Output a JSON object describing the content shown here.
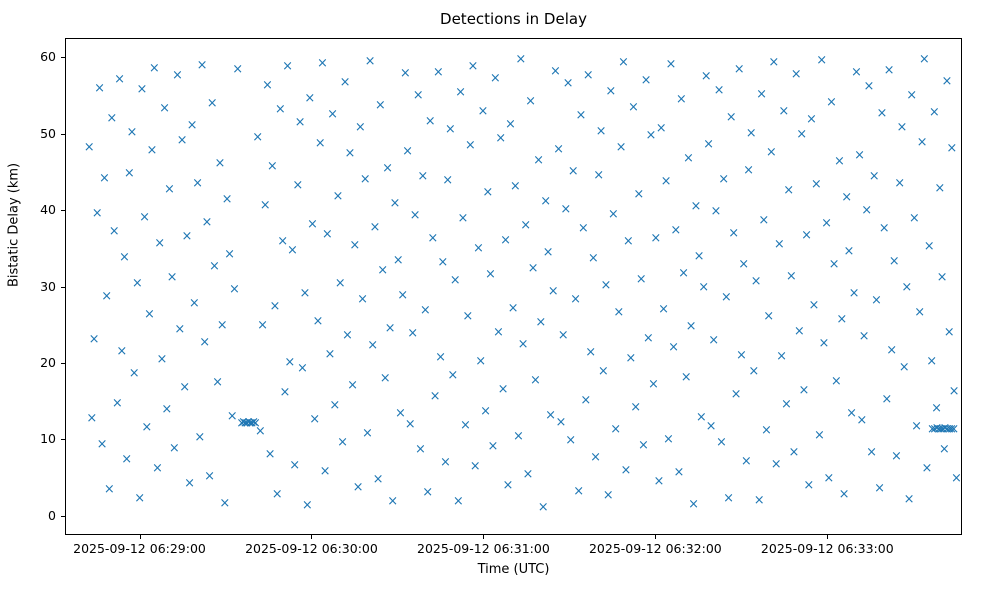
{
  "chart_data": {
    "type": "scatter",
    "title": "Detections in Delay",
    "xlabel": "Time (UTC)",
    "ylabel": "Bistatic Delay (km)",
    "marker": "x",
    "marker_glyph": "×",
    "marker_color": "#1f77b4",
    "grid": false,
    "legend": "none",
    "x_unit": "seconds after 2025-09-12 06:28:00 UTC",
    "xlim": [
      34,
      347
    ],
    "ylim": [
      -2.5,
      62.5
    ],
    "x_ticks": [
      {
        "t": 60,
        "label": "2025-09-12 06:29:00"
      },
      {
        "t": 120,
        "label": "2025-09-12 06:30:00"
      },
      {
        "t": 180,
        "label": "2025-09-12 06:31:00"
      },
      {
        "t": 240,
        "label": "2025-09-12 06:32:00"
      },
      {
        "t": 300,
        "label": "2025-09-12 06:33:00"
      }
    ],
    "y_ticks": [
      0,
      10,
      20,
      30,
      40,
      50,
      60
    ],
    "points": [
      [
        42.1,
        48.3
      ],
      [
        43.0,
        12.8
      ],
      [
        43.8,
        23.1
      ],
      [
        44.9,
        39.6
      ],
      [
        45.7,
        55.9
      ],
      [
        46.6,
        9.4
      ],
      [
        47.4,
        44.2
      ],
      [
        48.2,
        28.7
      ],
      [
        49.1,
        3.5
      ],
      [
        50.0,
        52.0
      ],
      [
        50.8,
        37.3
      ],
      [
        51.9,
        14.8
      ],
      [
        52.7,
        57.1
      ],
      [
        53.5,
        21.6
      ],
      [
        54.4,
        33.9
      ],
      [
        55.2,
        7.4
      ],
      [
        56.1,
        44.9
      ],
      [
        57.0,
        50.2
      ],
      [
        57.8,
        18.7
      ],
      [
        58.9,
        30.5
      ],
      [
        59.7,
        2.3
      ],
      [
        60.5,
        55.8
      ],
      [
        61.4,
        39.1
      ],
      [
        62.2,
        11.6
      ],
      [
        63.1,
        26.4
      ],
      [
        64.0,
        47.9
      ],
      [
        64.8,
        58.6
      ],
      [
        65.9,
        6.2
      ],
      [
        66.7,
        35.7
      ],
      [
        67.5,
        20.5
      ],
      [
        68.4,
        53.3
      ],
      [
        69.2,
        14.0
      ],
      [
        70.1,
        42.8
      ],
      [
        71.0,
        31.2
      ],
      [
        71.8,
        8.9
      ],
      [
        72.9,
        57.6
      ],
      [
        73.7,
        24.4
      ],
      [
        74.5,
        49.1
      ],
      [
        75.4,
        16.9
      ],
      [
        76.2,
        36.6
      ],
      [
        77.1,
        4.3
      ],
      [
        78.0,
        51.1
      ],
      [
        78.8,
        27.8
      ],
      [
        79.9,
        43.6
      ],
      [
        80.7,
        10.3
      ],
      [
        81.5,
        59.0
      ],
      [
        82.4,
        22.8
      ],
      [
        83.2,
        38.5
      ],
      [
        84.1,
        5.2
      ],
      [
        85.0,
        54.0
      ],
      [
        85.8,
        32.7
      ],
      [
        86.9,
        17.5
      ],
      [
        87.7,
        46.2
      ],
      [
        88.5,
        25.0
      ],
      [
        89.4,
        1.7
      ],
      [
        90.2,
        41.5
      ],
      [
        91.1,
        34.2
      ],
      [
        92.0,
        13.0
      ],
      [
        92.8,
        29.7
      ],
      [
        93.9,
        58.4
      ],
      [
        95.3,
        12.2
      ],
      [
        95.9,
        12.3
      ],
      [
        96.5,
        12.1
      ],
      [
        97.1,
        12.2
      ],
      [
        97.7,
        12.3
      ],
      [
        98.3,
        12.1
      ],
      [
        98.9,
        12.2
      ],
      [
        99.5,
        12.3
      ],
      [
        100.1,
        12.2
      ],
      [
        100.9,
        49.6
      ],
      [
        101.8,
        11.1
      ],
      [
        102.6,
        24.9
      ],
      [
        103.5,
        40.7
      ],
      [
        104.3,
        56.4
      ],
      [
        105.2,
        8.1
      ],
      [
        106.0,
        45.8
      ],
      [
        106.9,
        27.5
      ],
      [
        107.7,
        2.9
      ],
      [
        108.8,
        53.2
      ],
      [
        109.6,
        36.0
      ],
      [
        110.4,
        16.2
      ],
      [
        111.3,
        58.9
      ],
      [
        112.1,
        20.1
      ],
      [
        113.0,
        34.8
      ],
      [
        113.8,
        6.6
      ],
      [
        114.9,
        43.3
      ],
      [
        115.7,
        51.5
      ],
      [
        116.5,
        19.3
      ],
      [
        117.4,
        29.1
      ],
      [
        118.2,
        1.4
      ],
      [
        119.1,
        54.7
      ],
      [
        120.0,
        38.2
      ],
      [
        120.8,
        12.7
      ],
      [
        121.9,
        25.5
      ],
      [
        122.7,
        48.8
      ],
      [
        123.5,
        59.2
      ],
      [
        124.4,
        5.9
      ],
      [
        125.2,
        36.9
      ],
      [
        126.1,
        21.2
      ],
      [
        127.0,
        52.6
      ],
      [
        127.8,
        14.5
      ],
      [
        128.9,
        41.9
      ],
      [
        129.7,
        30.4
      ],
      [
        130.5,
        9.7
      ],
      [
        131.4,
        56.8
      ],
      [
        132.2,
        23.7
      ],
      [
        133.1,
        47.4
      ],
      [
        134.0,
        17.1
      ],
      [
        134.8,
        35.4
      ],
      [
        135.9,
        3.8
      ],
      [
        136.7,
        50.9
      ],
      [
        137.5,
        28.3
      ],
      [
        138.4,
        44.1
      ],
      [
        139.2,
        10.8
      ],
      [
        140.1,
        59.5
      ],
      [
        141.0,
        22.3
      ],
      [
        141.8,
        37.8
      ],
      [
        142.9,
        4.8
      ],
      [
        143.7,
        53.8
      ],
      [
        144.5,
        32.1
      ],
      [
        145.4,
        18.0
      ],
      [
        146.2,
        45.5
      ],
      [
        147.1,
        24.6
      ],
      [
        148.0,
        1.9
      ],
      [
        148.8,
        40.9
      ],
      [
        149.9,
        33.5
      ],
      [
        150.7,
        13.4
      ],
      [
        151.5,
        28.9
      ],
      [
        152.4,
        57.9
      ],
      [
        153.2,
        47.7
      ],
      [
        154.1,
        12.0
      ],
      [
        155.0,
        23.9
      ],
      [
        155.8,
        39.3
      ],
      [
        156.9,
        55.1
      ],
      [
        157.7,
        8.8
      ],
      [
        158.5,
        44.4
      ],
      [
        159.4,
        26.9
      ],
      [
        160.2,
        3.1
      ],
      [
        161.1,
        51.7
      ],
      [
        162.0,
        36.3
      ],
      [
        162.8,
        15.7
      ],
      [
        163.9,
        58.1
      ],
      [
        164.7,
        20.8
      ],
      [
        165.5,
        33.2
      ],
      [
        166.4,
        7.0
      ],
      [
        167.2,
        43.9
      ],
      [
        168.1,
        50.6
      ],
      [
        169.0,
        18.4
      ],
      [
        169.8,
        30.9
      ],
      [
        170.9,
        2.0
      ],
      [
        171.7,
        55.4
      ],
      [
        172.5,
        38.9
      ],
      [
        173.4,
        11.9
      ],
      [
        174.2,
        26.1
      ],
      [
        175.1,
        48.5
      ],
      [
        176.0,
        58.8
      ],
      [
        176.8,
        6.5
      ],
      [
        177.9,
        35.1
      ],
      [
        178.7,
        20.3
      ],
      [
        179.5,
        52.9
      ],
      [
        180.4,
        13.7
      ],
      [
        181.2,
        42.4
      ],
      [
        182.1,
        31.6
      ],
      [
        183.0,
        9.1
      ],
      [
        183.8,
        57.3
      ],
      [
        184.9,
        24.1
      ],
      [
        185.7,
        49.4
      ],
      [
        186.5,
        16.6
      ],
      [
        187.4,
        36.1
      ],
      [
        188.2,
        4.0
      ],
      [
        189.1,
        51.3
      ],
      [
        190.0,
        27.2
      ],
      [
        190.8,
        43.1
      ],
      [
        191.9,
        10.5
      ],
      [
        192.7,
        59.7
      ],
      [
        193.5,
        22.5
      ],
      [
        194.4,
        38.0
      ],
      [
        195.2,
        5.5
      ],
      [
        196.1,
        54.3
      ],
      [
        197.0,
        32.4
      ],
      [
        197.8,
        17.8
      ],
      [
        198.9,
        46.6
      ],
      [
        199.7,
        25.3
      ],
      [
        200.5,
        1.2
      ],
      [
        201.4,
        41.2
      ],
      [
        202.2,
        34.5
      ],
      [
        203.1,
        13.2
      ],
      [
        204.0,
        29.4
      ],
      [
        204.8,
        58.2
      ],
      [
        205.9,
        48.0
      ],
      [
        206.7,
        12.3
      ],
      [
        207.5,
        23.6
      ],
      [
        208.4,
        40.2
      ],
      [
        209.2,
        56.6
      ],
      [
        210.1,
        9.9
      ],
      [
        211.0,
        45.1
      ],
      [
        211.8,
        28.4
      ],
      [
        212.9,
        3.3
      ],
      [
        213.7,
        52.4
      ],
      [
        214.5,
        37.6
      ],
      [
        215.4,
        15.1
      ],
      [
        216.2,
        57.7
      ],
      [
        217.1,
        21.4
      ],
      [
        218.0,
        33.7
      ],
      [
        218.8,
        7.7
      ],
      [
        219.9,
        44.6
      ],
      [
        220.7,
        50.4
      ],
      [
        221.5,
        19.0
      ],
      [
        222.4,
        30.2
      ],
      [
        223.2,
        2.7
      ],
      [
        224.1,
        55.6
      ],
      [
        225.0,
        39.5
      ],
      [
        225.8,
        11.4
      ],
      [
        226.9,
        26.7
      ],
      [
        227.7,
        48.3
      ],
      [
        228.5,
        59.3
      ],
      [
        229.4,
        6.0
      ],
      [
        230.2,
        35.9
      ],
      [
        231.1,
        20.6
      ],
      [
        232.0,
        53.5
      ],
      [
        232.8,
        14.3
      ],
      [
        233.9,
        42.1
      ],
      [
        234.7,
        31.0
      ],
      [
        235.5,
        9.3
      ],
      [
        236.4,
        57.0
      ],
      [
        237.2,
        23.2
      ],
      [
        238.1,
        49.8
      ],
      [
        239.0,
        17.3
      ],
      [
        239.8,
        36.4
      ],
      [
        240.9,
        4.6
      ],
      [
        241.7,
        50.7
      ],
      [
        242.5,
        27.0
      ],
      [
        243.4,
        43.8
      ],
      [
        244.2,
        10.1
      ],
      [
        245.1,
        59.1
      ],
      [
        246.0,
        22.1
      ],
      [
        246.8,
        37.4
      ],
      [
        247.9,
        5.7
      ],
      [
        248.7,
        54.5
      ],
      [
        249.5,
        31.8
      ],
      [
        250.4,
        18.2
      ],
      [
        251.2,
        46.8
      ],
      [
        252.1,
        24.8
      ],
      [
        253.0,
        1.6
      ],
      [
        253.8,
        40.5
      ],
      [
        254.9,
        34.0
      ],
      [
        255.7,
        12.9
      ],
      [
        256.5,
        29.9
      ],
      [
        257.4,
        57.5
      ],
      [
        258.2,
        48.6
      ],
      [
        259.1,
        11.8
      ],
      [
        260.0,
        23.0
      ],
      [
        260.8,
        39.9
      ],
      [
        261.9,
        55.7
      ],
      [
        262.7,
        9.6
      ],
      [
        263.5,
        44.0
      ],
      [
        264.4,
        28.6
      ],
      [
        265.2,
        2.4
      ],
      [
        266.1,
        52.2
      ],
      [
        267.0,
        37.0
      ],
      [
        267.8,
        15.9
      ],
      [
        268.9,
        58.5
      ],
      [
        269.7,
        21.0
      ],
      [
        270.5,
        33.0
      ],
      [
        271.4,
        7.2
      ],
      [
        272.2,
        45.3
      ],
      [
        273.1,
        50.1
      ],
      [
        274.0,
        18.9
      ],
      [
        274.8,
        30.7
      ],
      [
        275.9,
        2.1
      ],
      [
        276.7,
        55.2
      ],
      [
        277.5,
        38.7
      ],
      [
        278.4,
        11.2
      ],
      [
        279.2,
        26.2
      ],
      [
        280.1,
        47.6
      ],
      [
        281.0,
        59.4
      ],
      [
        281.8,
        6.8
      ],
      [
        282.9,
        35.5
      ],
      [
        283.7,
        20.9
      ],
      [
        284.5,
        53.0
      ],
      [
        285.4,
        14.6
      ],
      [
        286.2,
        42.6
      ],
      [
        287.1,
        31.4
      ],
      [
        288.0,
        8.3
      ],
      [
        288.8,
        57.8
      ],
      [
        289.9,
        24.2
      ],
      [
        290.7,
        49.9
      ],
      [
        291.5,
        16.4
      ],
      [
        292.4,
        36.7
      ],
      [
        293.2,
        4.1
      ],
      [
        294.1,
        51.9
      ],
      [
        295.0,
        27.6
      ],
      [
        295.8,
        43.4
      ],
      [
        296.9,
        10.6
      ],
      [
        297.7,
        59.6
      ],
      [
        298.5,
        22.6
      ],
      [
        299.4,
        38.3
      ],
      [
        300.2,
        5.0
      ],
      [
        301.1,
        54.1
      ],
      [
        302.0,
        32.9
      ],
      [
        302.8,
        17.6
      ],
      [
        303.9,
        46.4
      ],
      [
        304.7,
        25.7
      ],
      [
        305.5,
        2.8
      ],
      [
        306.4,
        41.7
      ],
      [
        307.2,
        34.6
      ],
      [
        308.1,
        13.5
      ],
      [
        309.0,
        29.2
      ],
      [
        309.8,
        58.0
      ],
      [
        310.9,
        47.2
      ],
      [
        311.7,
        12.6
      ],
      [
        312.5,
        23.5
      ],
      [
        313.4,
        40.0
      ],
      [
        314.2,
        56.2
      ],
      [
        315.1,
        8.4
      ],
      [
        316.0,
        44.5
      ],
      [
        316.8,
        28.2
      ],
      [
        317.9,
        3.6
      ],
      [
        318.7,
        52.7
      ],
      [
        319.5,
        37.7
      ],
      [
        320.4,
        15.3
      ],
      [
        321.2,
        58.3
      ],
      [
        322.1,
        21.7
      ],
      [
        323.0,
        33.3
      ],
      [
        323.8,
        7.8
      ],
      [
        324.9,
        43.5
      ],
      [
        325.7,
        50.8
      ],
      [
        326.5,
        19.5
      ],
      [
        327.4,
        30.0
      ],
      [
        328.2,
        2.2
      ],
      [
        329.1,
        55.0
      ],
      [
        330.0,
        39.0
      ],
      [
        330.8,
        11.7
      ],
      [
        331.9,
        26.6
      ],
      [
        332.7,
        48.9
      ],
      [
        333.5,
        59.8
      ],
      [
        334.4,
        6.3
      ],
      [
        335.2,
        35.3
      ],
      [
        336.1,
        20.2
      ],
      [
        337.0,
        52.8
      ],
      [
        337.8,
        14.1
      ],
      [
        338.9,
        42.9
      ],
      [
        339.7,
        31.3
      ],
      [
        340.5,
        8.7
      ],
      [
        341.4,
        56.9
      ],
      [
        342.2,
        24.0
      ],
      [
        343.1,
        48.1
      ],
      [
        343.9,
        16.3
      ],
      [
        344.7,
        4.9
      ],
      [
        336.3,
        11.4
      ],
      [
        337.1,
        11.3
      ],
      [
        337.9,
        11.5
      ],
      [
        338.6,
        11.3
      ],
      [
        339.3,
        11.4
      ],
      [
        340.0,
        11.3
      ],
      [
        340.7,
        11.5
      ],
      [
        341.5,
        11.4
      ],
      [
        342.3,
        11.3
      ],
      [
        343.0,
        11.4
      ],
      [
        343.8,
        11.3
      ]
    ]
  }
}
